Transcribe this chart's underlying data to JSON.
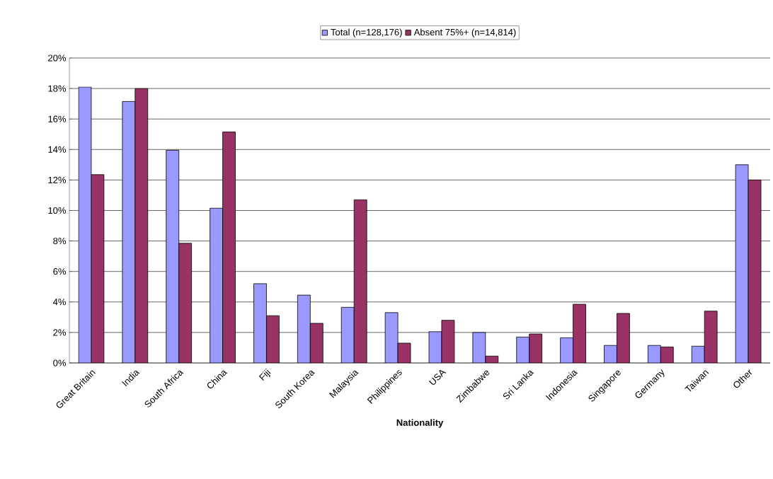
{
  "chart_data": {
    "type": "bar",
    "xlabel": "Nationality",
    "categories": [
      "Great Britain",
      "India",
      "South Africa",
      "China",
      "Fiji",
      "South Korea",
      "Malaysia",
      "Philippines",
      "USA",
      "Zimbabwe",
      "Sri Lanka",
      "Indonesia",
      "Singapore",
      "Germany",
      "Taiwan",
      "Other"
    ],
    "series": [
      {
        "name": "Total (n=128,176)",
        "color": "#9999ff",
        "values": [
          18.1,
          17.15,
          13.95,
          10.15,
          5.2,
          4.45,
          3.65,
          3.3,
          2.05,
          2.0,
          1.7,
          1.65,
          1.15,
          1.15,
          1.1,
          13.0
        ]
      },
      {
        "name": "Absent 75%+ (n=14,814)",
        "color": "#993366",
        "values": [
          12.35,
          18.0,
          7.85,
          15.15,
          3.1,
          2.6,
          10.7,
          1.3,
          2.8,
          0.45,
          1.9,
          3.85,
          3.25,
          1.05,
          3.4,
          12.0
        ]
      }
    ],
    "ylim": [
      0,
      20
    ],
    "yticks": [
      {
        "value": 0,
        "label": "0%"
      },
      {
        "value": 2,
        "label": "2%"
      },
      {
        "value": 4,
        "label": "4%"
      },
      {
        "value": 6,
        "label": "6%"
      },
      {
        "value": 8,
        "label": "8%"
      },
      {
        "value": 10,
        "label": "10%"
      },
      {
        "value": 12,
        "label": "12%"
      },
      {
        "value": 14,
        "label": "14%"
      },
      {
        "value": 16,
        "label": "16%"
      },
      {
        "value": 18,
        "label": "18%"
      },
      {
        "value": 20,
        "label": "20%"
      }
    ],
    "grid": "y",
    "legend": "top"
  }
}
